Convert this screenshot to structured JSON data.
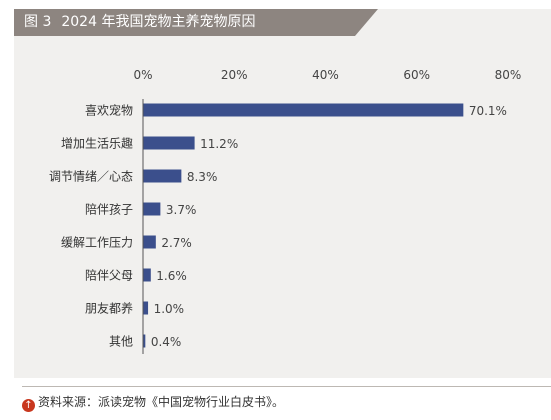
{
  "figure": {
    "number": "图 3",
    "title": "2024 年我国宠物主养宠物原因"
  },
  "source": {
    "icon": "up-arrow-icon",
    "text": "资料来源：派读宠物《中国宠物行业白皮书》。"
  },
  "colors": {
    "bar": "#3b4f8c",
    "title_bg": "#8d8580",
    "card_bg": "#f1f0ee",
    "source_icon": "#c8371e"
  },
  "chart_data": {
    "type": "bar",
    "orientation": "horizontal",
    "title": "2024 年我国宠物主养宠物原因",
    "categories": [
      "喜欢宠物",
      "增加生活乐趣",
      "调节情绪／心态",
      "陪伴孩子",
      "缓解工作压力",
      "陪伴父母",
      "朋友都养",
      "其他"
    ],
    "values": [
      70.1,
      11.2,
      8.3,
      3.7,
      2.7,
      1.6,
      1.0,
      0.4
    ],
    "value_labels": [
      "70.1%",
      "11.2%",
      "8.3%",
      "3.7%",
      "2.7%",
      "1.6%",
      "1.0%",
      "0.4%"
    ],
    "xlim": [
      0,
      80
    ],
    "x_ticks": [
      0,
      20,
      40,
      60,
      80
    ],
    "x_tick_labels": [
      "0%",
      "20%",
      "40%",
      "60%",
      "80%"
    ],
    "x_axis_position": "top",
    "grid": false,
    "legend": "none"
  }
}
